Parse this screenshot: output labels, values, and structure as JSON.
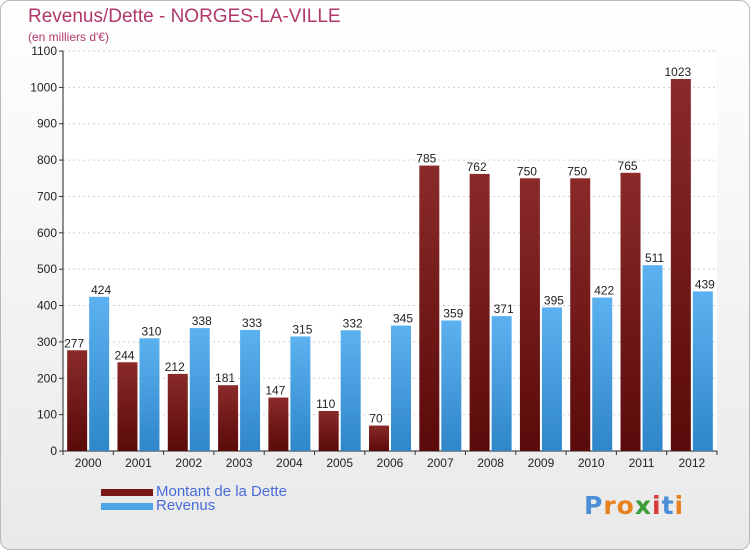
{
  "header": {
    "title": "Revenus/Dette - NORGES-LA-VILLE",
    "subtitle": "(en milliers d'€)"
  },
  "colors": {
    "dette": "#7a1818",
    "revenus": "#4aa4e6",
    "title": "#b0386a",
    "legend_text": "#4a6cd8"
  },
  "chart_data": {
    "type": "bar",
    "title": "Revenus/Dette - NORGES-LA-VILLE",
    "subtitle": "(en milliers d'€)",
    "categories": [
      "2000",
      "2001",
      "2002",
      "2003",
      "2004",
      "2005",
      "2006",
      "2007",
      "2008",
      "2009",
      "2010",
      "2011",
      "2012"
    ],
    "series": [
      {
        "name": "Montant de la Dette",
        "values": [
          277,
          244,
          212,
          181,
          147,
          110,
          70,
          785,
          762,
          750,
          750,
          765,
          1023
        ]
      },
      {
        "name": "Revenus",
        "values": [
          424,
          310,
          338,
          333,
          315,
          332,
          345,
          359,
          371,
          395,
          422,
          511,
          439
        ]
      }
    ],
    "ylim": [
      0,
      1100
    ],
    "yticks": [
      0,
      100,
      200,
      300,
      400,
      500,
      600,
      700,
      800,
      900,
      1000,
      1100
    ],
    "grid": true,
    "legend": "bottom-left"
  },
  "legend": {
    "items": [
      {
        "label": "Montant de la Dette"
      },
      {
        "label": "Revenus"
      }
    ]
  },
  "logo": {
    "letters": [
      "P",
      "r",
      "o",
      "x",
      "i",
      "t",
      "i"
    ],
    "letter_colors": [
      "#4a8fd8",
      "#e8821e",
      "#e8821e",
      "#3a9e3a",
      "#d83a3a",
      "#4a8fd8",
      "#e8821e"
    ]
  }
}
